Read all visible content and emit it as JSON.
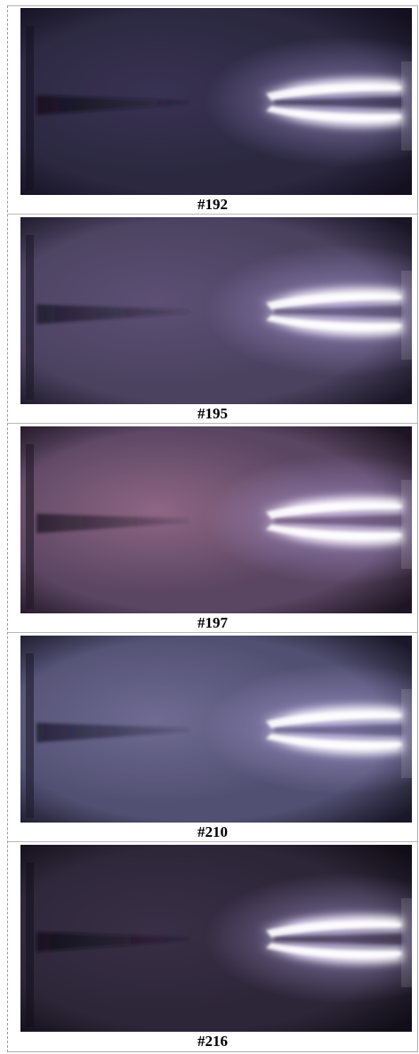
{
  "frames": [
    {
      "label": "#192",
      "tone": {
        "bg": "#2b2840",
        "edge": "#141020",
        "haze": "#4a3f6a",
        "hazeOpacity": 0.45,
        "glow": "#f3ecff",
        "shadow": "#15121f"
      }
    },
    {
      "label": "#195",
      "tone": {
        "bg": "#4b4260",
        "edge": "#1a1626",
        "haze": "#6a5a84",
        "hazeOpacity": 0.55,
        "glow": "#f6f0ff",
        "shadow": "#221d30"
      }
    },
    {
      "label": "#197",
      "tone": {
        "bg": "#5a4562",
        "edge": "#1e1522",
        "haze": "#b07c9a",
        "hazeOpacity": 0.6,
        "glow": "#fbf1ff",
        "shadow": "#2b2030"
      }
    },
    {
      "label": "#210",
      "tone": {
        "bg": "#525072",
        "edge": "#1a1828",
        "haze": "#8680ad",
        "hazeOpacity": 0.55,
        "glow": "#f6f2ff",
        "shadow": "#25223a"
      }
    },
    {
      "label": "#216",
      "tone": {
        "bg": "#2d2638",
        "edge": "#120e18",
        "haze": "#4a3c5c",
        "hazeOpacity": 0.4,
        "glow": "#efe6ff",
        "shadow": "#140f1c"
      }
    }
  ]
}
